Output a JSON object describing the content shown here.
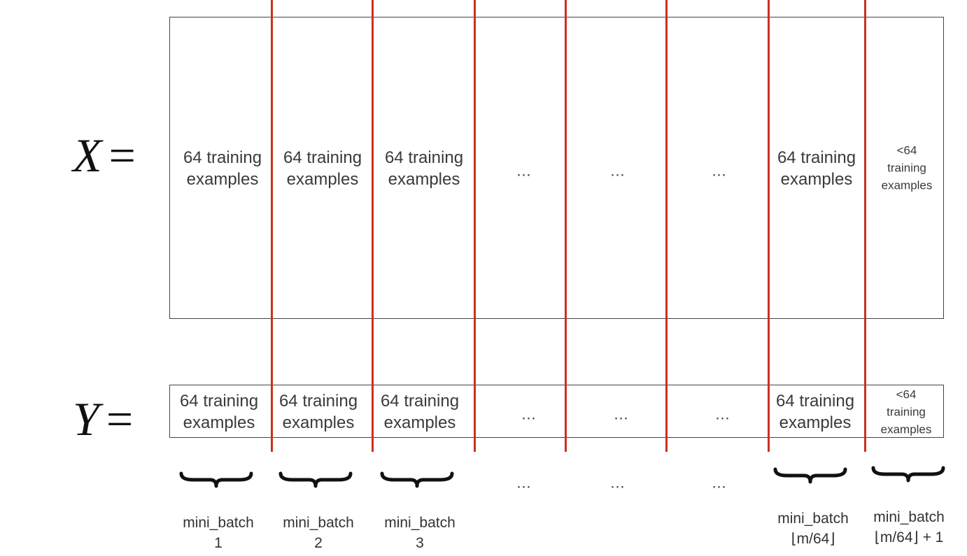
{
  "x_label": {
    "symbol": "X",
    "eq": "="
  },
  "y_label": {
    "symbol": "Y",
    "eq": "="
  },
  "x_cells": [
    {
      "line1": "64 training",
      "line2": "examples"
    },
    {
      "line1": "64 training",
      "line2": "examples"
    },
    {
      "line1": "64 training",
      "line2": "examples"
    },
    {
      "text": "…"
    },
    {
      "text": "…"
    },
    {
      "text": "…"
    },
    {
      "line1": "64 training",
      "line2": "examples"
    },
    {
      "line1": "<64",
      "line2": "training",
      "line3": "examples"
    }
  ],
  "y_cells": [
    {
      "line1": "64 training",
      "line2": "examples"
    },
    {
      "line1": "64 training",
      "line2": "examples"
    },
    {
      "line1": "64 training",
      "line2": "examples"
    },
    {
      "text": "…"
    },
    {
      "text": "…"
    },
    {
      "text": "…"
    },
    {
      "line1": "64 training",
      "line2": "examples"
    },
    {
      "line1": "<64",
      "line2": "training",
      "line3": "examples"
    }
  ],
  "brace_dots": [
    "…",
    "…",
    "…"
  ],
  "captions": [
    {
      "line1": "mini_batch",
      "line2": "1"
    },
    {
      "line1": "mini_batch",
      "line2": "2"
    },
    {
      "line1": "mini_batch",
      "line2": "3"
    },
    {
      "line1": "mini_batch",
      "line2": "⌊m/64⌋"
    },
    {
      "line1": "mini_batch",
      "line2": "⌊m/64⌋ + 1"
    }
  ],
  "colors": {
    "divider": "#c8321f",
    "box_border": "#444444",
    "text": "#333333"
  }
}
